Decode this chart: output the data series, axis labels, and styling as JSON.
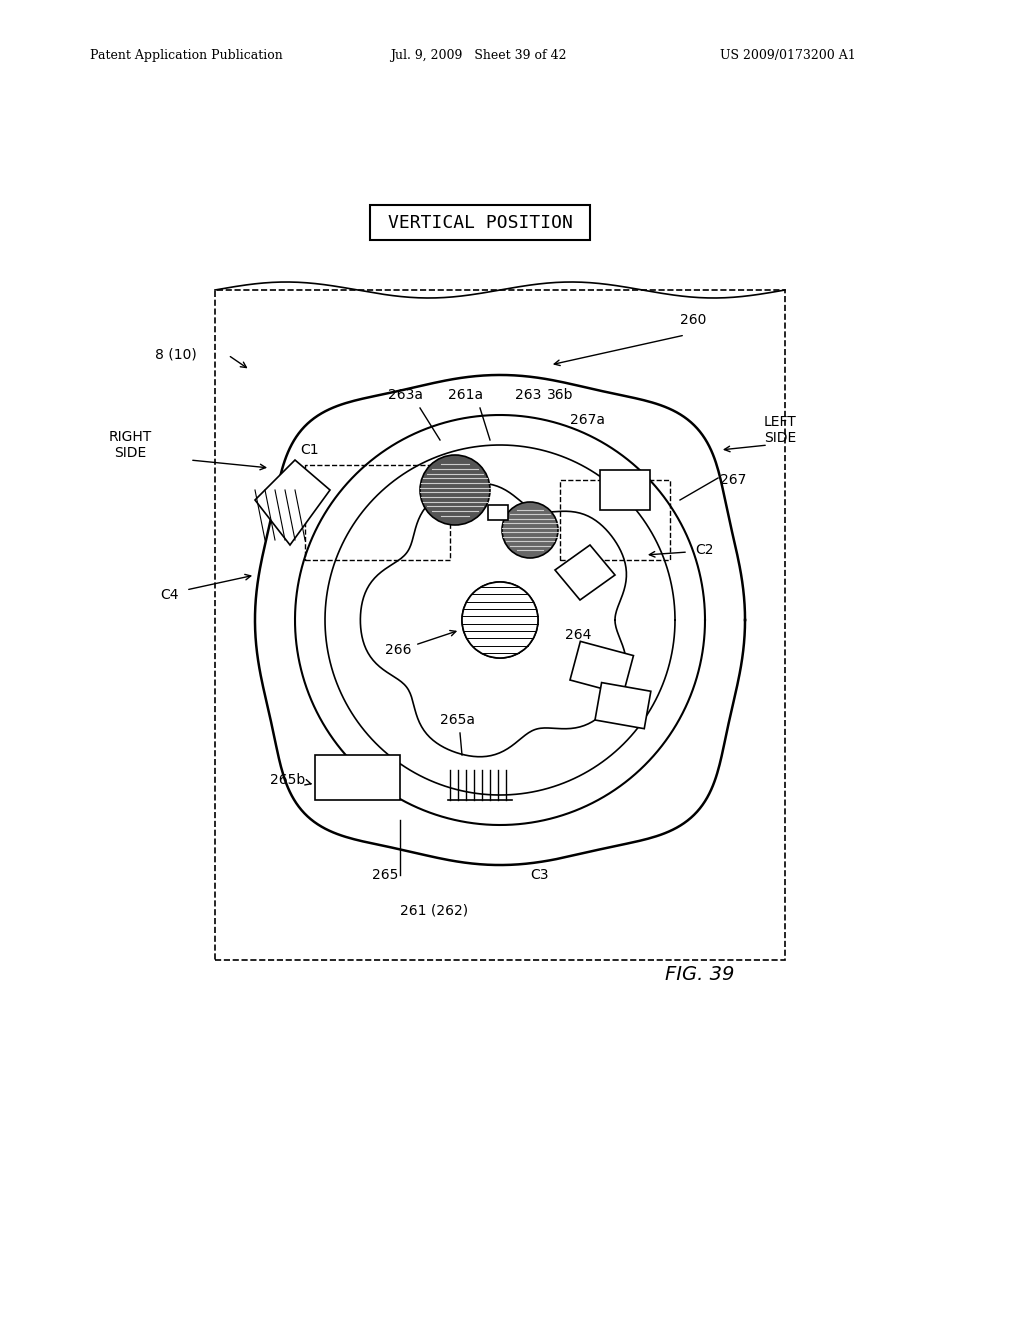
{
  "title": "VERTICAL POSITION",
  "fig_label": "FIG. 39",
  "header_left": "Patent Application Publication",
  "header_mid": "Jul. 9, 2009   Sheet 39 of 42",
  "header_right": "US 2009/0173200 A1",
  "bg_color": "#ffffff",
  "line_color": "#000000",
  "labels": {
    "8_10": "8 (10)",
    "260": "260",
    "263a": "263a",
    "261a": "261a",
    "263": "263",
    "36b": "36b",
    "267a": "267a",
    "right_side": "RIGHT\nSIDE",
    "left_side": "LEFT\nSIDE",
    "C1": "C1",
    "C2": "C2",
    "C3": "C3",
    "C4": "C4",
    "267": "267",
    "266": "266",
    "264": "264",
    "265a": "265a",
    "265b": "265b",
    "265": "265",
    "261_262": "261 (262)"
  }
}
